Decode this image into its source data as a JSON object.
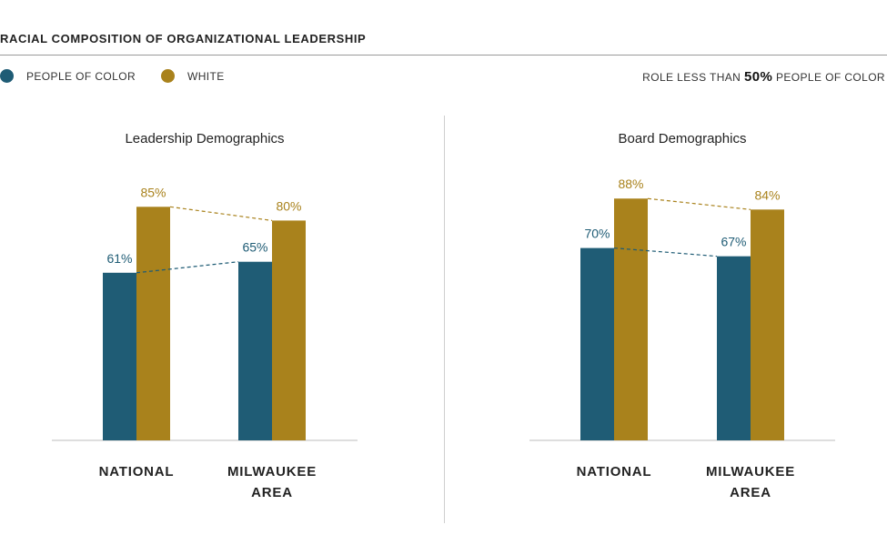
{
  "header": {
    "title": "RACIAL COMPOSITION OF ORGANIZATIONAL LEADERSHIP"
  },
  "legend": {
    "people_of_color": "PEOPLE OF COLOR",
    "white": "WHITE",
    "note_prefix": "ROLE LESS THAN ",
    "note_value": "50%",
    "note_suffix": " PEOPLE OF COLOR"
  },
  "colors": {
    "people_of_color": "#1f5c75",
    "white": "#a9821c",
    "baseline": "#bdbdbd"
  },
  "chart_data": [
    {
      "type": "bar",
      "title": "Leadership Demographics",
      "categories": [
        [
          "NATIONAL"
        ],
        [
          "MILWAUKEE",
          "AREA"
        ]
      ],
      "series": [
        {
          "name": "PEOPLE OF COLOR",
          "values": [
            61,
            65
          ],
          "labels": [
            "61%",
            "65%"
          ]
        },
        {
          "name": "WHITE",
          "values": [
            85,
            80
          ],
          "labels": [
            "85%",
            "80%"
          ]
        }
      ],
      "ylim": [
        0,
        100
      ],
      "trend_lines": "dashed",
      "grid": false,
      "legend": "top-left"
    },
    {
      "type": "bar",
      "title": "Board Demographics",
      "categories": [
        [
          "NATIONAL"
        ],
        [
          "MILWAUKEE",
          "AREA"
        ]
      ],
      "series": [
        {
          "name": "PEOPLE OF COLOR",
          "values": [
            70,
            67
          ],
          "labels": [
            "70%",
            "67%"
          ]
        },
        {
          "name": "WHITE",
          "values": [
            88,
            84
          ],
          "labels": [
            "88%",
            "84%"
          ]
        }
      ],
      "ylim": [
        0,
        100
      ],
      "trend_lines": "dashed",
      "grid": false,
      "legend": "top-left"
    }
  ]
}
